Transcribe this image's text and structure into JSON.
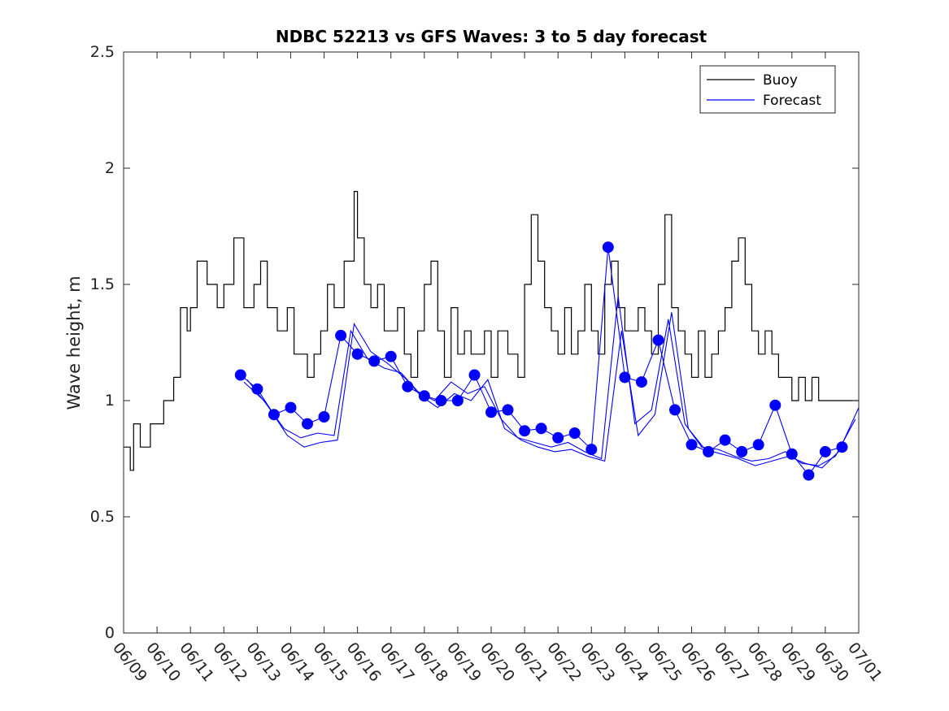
{
  "chart_data": {
    "type": "line",
    "title": "NDBC 52213 vs GFS Waves: 3 to 5 day forecast",
    "xlabel": "",
    "ylabel": "Wave height, m",
    "ylim": [
      0,
      2.5
    ],
    "yticks": [
      "0",
      "0.5",
      "1",
      "1.5",
      "2",
      "2.5"
    ],
    "xlim": [
      "06/09",
      "07/01"
    ],
    "xticks": [
      "06/09",
      "06/10",
      "06/11",
      "06/12",
      "06/13",
      "06/14",
      "06/15",
      "06/16",
      "06/17",
      "06/18",
      "06/19",
      "06/20",
      "06/21",
      "06/22",
      "06/23",
      "06/24",
      "06/25",
      "06/26",
      "06/27",
      "06/28",
      "06/29",
      "06/30",
      "07/01"
    ],
    "grid": false,
    "legend": {
      "placement": "top-right",
      "entries": [
        {
          "label": "Buoy",
          "color": "#000000"
        },
        {
          "label": "Forecast",
          "color": "#0000ff"
        }
      ]
    },
    "series": [
      {
        "name": "Buoy",
        "color": "#000000",
        "x": [
          0,
          0.2,
          0.3,
          0.5,
          0.8,
          1.0,
          1.2,
          1.5,
          1.7,
          1.9,
          2.0,
          2.2,
          2.5,
          2.8,
          3.0,
          3.3,
          3.6,
          3.9,
          4.1,
          4.3,
          4.6,
          4.9,
          5.1,
          5.3,
          5.5,
          5.7,
          5.9,
          6.1,
          6.3,
          6.6,
          6.9,
          7.0,
          7.2,
          7.4,
          7.6,
          7.8,
          8.0,
          8.2,
          8.4,
          8.6,
          8.8,
          9.0,
          9.2,
          9.4,
          9.6,
          9.8,
          10.0,
          10.2,
          10.4,
          10.6,
          10.8,
          11.0,
          11.2,
          11.5,
          11.8,
          12.0,
          12.2,
          12.4,
          12.6,
          12.8,
          13.0,
          13.2,
          13.4,
          13.6,
          13.8,
          14.0,
          14.2,
          14.4,
          14.6,
          14.8,
          15.0,
          15.2,
          15.4,
          15.6,
          15.8,
          16.0,
          16.2,
          16.4,
          16.6,
          16.8,
          17.0,
          17.2,
          17.4,
          17.6,
          17.8,
          18.0,
          18.2,
          18.4,
          18.6,
          18.8,
          19.0,
          19.2,
          19.4,
          19.6,
          19.8,
          20.0,
          20.2,
          20.4,
          20.6,
          20.8,
          21.0,
          21.2,
          21.4,
          21.6,
          21.8,
          22.0
        ],
        "values": [
          0.8,
          0.7,
          0.9,
          0.8,
          0.9,
          0.9,
          1.0,
          1.1,
          1.4,
          1.3,
          1.4,
          1.6,
          1.5,
          1.4,
          1.5,
          1.7,
          1.4,
          1.5,
          1.6,
          1.4,
          1.3,
          1.4,
          1.2,
          1.2,
          1.1,
          1.2,
          1.3,
          1.5,
          1.4,
          1.6,
          1.9,
          1.7,
          1.5,
          1.4,
          1.5,
          1.3,
          1.3,
          1.4,
          1.2,
          1.1,
          1.3,
          1.5,
          1.6,
          1.3,
          1.1,
          1.4,
          1.2,
          1.3,
          1.2,
          1.2,
          1.3,
          1.1,
          1.3,
          1.2,
          1.1,
          1.5,
          1.8,
          1.6,
          1.4,
          1.3,
          1.2,
          1.4,
          1.2,
          1.3,
          1.5,
          1.3,
          1.2,
          1.5,
          1.6,
          1.4,
          1.3,
          1.3,
          1.4,
          1.3,
          1.2,
          1.5,
          1.8,
          1.4,
          1.3,
          1.2,
          1.1,
          1.3,
          1.1,
          1.2,
          1.3,
          1.4,
          1.6,
          1.7,
          1.5,
          1.3,
          1.2,
          1.3,
          1.2,
          1.1,
          1.1,
          1.0,
          1.1,
          1.0,
          1.1,
          1.0,
          1.0,
          1.0,
          1.0,
          1.0,
          1.0,
          1.0
        ]
      },
      {
        "name": "Forecast",
        "color": "#0000ff",
        "x": [
          3.5,
          4.0,
          4.5,
          5.0,
          5.5,
          6.0,
          6.5,
          7.0,
          7.5,
          8.0,
          8.5,
          9.0,
          9.5,
          10.0,
          10.5,
          11.0,
          11.5,
          12.0,
          12.5,
          13.0,
          13.5,
          14.0,
          14.5,
          15.0,
          15.5,
          16.0,
          16.5,
          17.0,
          17.5,
          18.0,
          18.5,
          19.0,
          19.5,
          20.0,
          20.5,
          21.0,
          21.5
        ],
        "values": [
          1.11,
          1.05,
          0.94,
          0.97,
          0.9,
          0.93,
          1.28,
          1.2,
          1.17,
          1.19,
          1.06,
          1.02,
          1.0,
          1.0,
          1.11,
          0.95,
          0.96,
          0.87,
          0.88,
          0.84,
          0.86,
          0.79,
          1.66,
          1.1,
          1.08,
          1.26,
          0.96,
          0.81,
          0.78,
          0.83,
          0.78,
          0.81,
          0.98,
          0.77,
          0.68,
          0.78,
          0.8
        ]
      },
      {
        "name": "",
        "color": "#0000ff",
        "x": [
          3.6,
          4.2,
          4.8,
          5.3,
          5.8,
          6.3,
          6.8,
          7.3,
          7.8,
          8.3,
          8.8,
          9.3,
          9.8,
          10.3,
          10.8,
          11.3,
          11.8,
          12.3,
          12.8,
          13.3,
          13.8,
          14.3,
          14.8,
          15.3,
          15.8,
          16.3,
          16.8,
          17.3,
          17.8,
          18.3,
          18.8,
          19.3,
          19.8,
          20.3,
          20.8,
          21.3,
          21.9
        ],
        "values": [
          1.08,
          1.0,
          0.88,
          0.84,
          0.86,
          0.85,
          1.3,
          1.18,
          1.14,
          1.12,
          1.04,
          1.0,
          1.08,
          1.03,
          1.06,
          0.92,
          0.84,
          0.82,
          0.8,
          0.82,
          0.78,
          0.75,
          1.45,
          0.9,
          0.96,
          1.35,
          0.9,
          0.8,
          0.79,
          0.76,
          0.74,
          0.75,
          0.78,
          0.73,
          0.72,
          0.76,
          0.92
        ]
      },
      {
        "name": "",
        "color": "#0000ff",
        "x": [
          3.7,
          4.3,
          4.9,
          5.4,
          5.9,
          6.4,
          6.9,
          7.4,
          7.9,
          8.4,
          8.9,
          9.4,
          9.9,
          10.4,
          10.9,
          11.4,
          11.9,
          12.4,
          12.9,
          13.4,
          13.9,
          14.4,
          14.9,
          15.4,
          15.9,
          16.4,
          16.9,
          17.4,
          17.9,
          18.4,
          18.9,
          19.4,
          19.9,
          20.4,
          20.9,
          21.4,
          22.0
        ],
        "values": [
          1.09,
          0.98,
          0.85,
          0.8,
          0.82,
          0.83,
          1.33,
          1.21,
          1.16,
          1.1,
          1.02,
          0.97,
          1.03,
          1.0,
          1.09,
          0.88,
          0.83,
          0.8,
          0.78,
          0.79,
          0.76,
          0.74,
          1.3,
          0.85,
          0.94,
          1.38,
          0.88,
          0.79,
          0.77,
          0.75,
          0.72,
          0.74,
          0.76,
          0.73,
          0.71,
          0.78,
          0.97
        ]
      }
    ]
  }
}
